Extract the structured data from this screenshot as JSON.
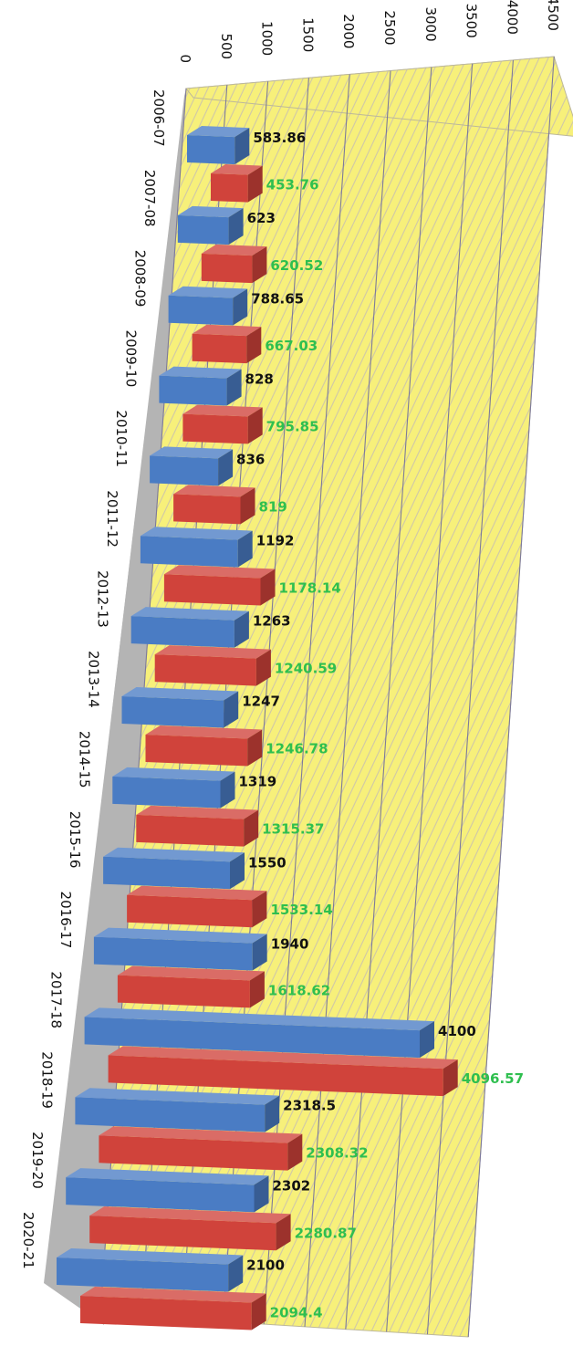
{
  "chart_data": {
    "type": "bar",
    "orientation": "horizontal",
    "style": "3d",
    "categories": [
      "2006-07",
      "2007-08",
      "2008-09",
      "2009-10",
      "2010-11",
      "2011-12",
      "2012-13",
      "2013-14",
      "2014-15",
      "2015-16",
      "2016-17",
      "2017-18",
      "2018-19",
      "2019-20",
      "2020-21"
    ],
    "series": [
      {
        "color": "#4a7cc4",
        "label_color": "#111111",
        "values": [
          583.86,
          623,
          788.65,
          828,
          836,
          1192,
          1263,
          1247,
          1319,
          1550,
          1940,
          4100,
          2318.5,
          2302,
          2100
        ],
        "labels": [
          "583.86",
          "623",
          "788.65",
          "828",
          "836",
          "1192",
          "1263",
          "1247",
          "1319",
          "1550",
          "1940",
          "4100",
          "2318.5",
          "2302",
          "2100"
        ]
      },
      {
        "color": "#d0433b",
        "label_color": "#2fbf4f",
        "values": [
          453.76,
          620.52,
          667.03,
          795.85,
          819,
          1178.14,
          1240.59,
          1246.78,
          1315.37,
          1533.14,
          1618.62,
          4096.57,
          2308.32,
          2280.87,
          2094.4
        ],
        "labels": [
          "453.76",
          "620.52",
          "667.03",
          "795.85",
          "819",
          "1178.14",
          "1240.59",
          "1246.78",
          "1315.37",
          "1533.14",
          "1618.62",
          "4096.57",
          "2308.32",
          "2280.87",
          "2094.4"
        ]
      }
    ],
    "value_axis": {
      "min": 0,
      "max": 4500,
      "ticks": [
        "0",
        "500",
        "1000",
        "1500",
        "2000",
        "2500",
        "3000",
        "3500",
        "4000",
        "4500"
      ]
    },
    "gridlines": true,
    "wall_color": "#f7f07a",
    "floor_color": "#b4b4b4"
  }
}
